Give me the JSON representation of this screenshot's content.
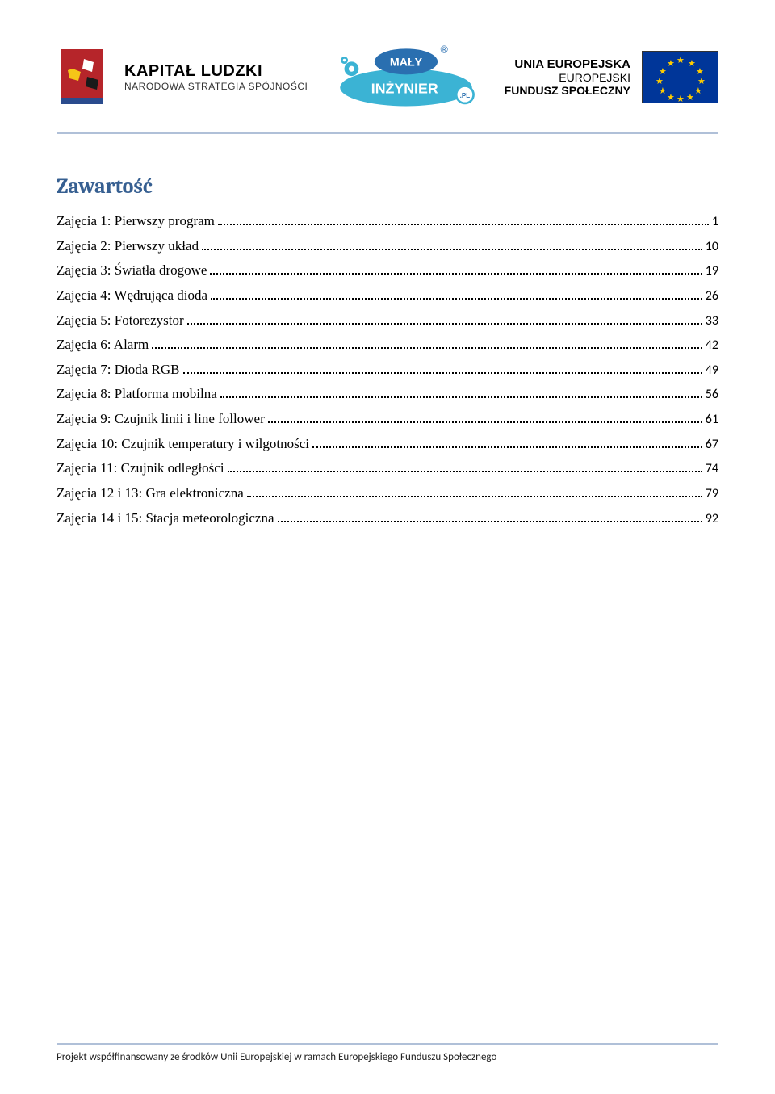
{
  "header": {
    "kapital_title": "KAPITAŁ LUDZKI",
    "kapital_sub": "NARODOWA STRATEGIA SPÓJNOŚCI",
    "mi_top": "MAŁY",
    "mi_bottom": "INŻYNIER",
    "mi_badge": ".PL",
    "ue_line1": "UNIA EUROPEJSKA",
    "ue_line2": "EUROPEJSKI",
    "ue_line3": "FUNDUSZ SPOŁECZNY",
    "colors": {
      "header_rule": "#b0c0d8",
      "title_color": "#365f91",
      "eu_flag_bg": "#003699",
      "eu_star": "#ffcc00",
      "mi_fill": "#3bb3d4"
    }
  },
  "title": "Zawartość",
  "toc": [
    {
      "label": "Zajęcia 1: Pierwszy program",
      "page": "1"
    },
    {
      "label": "Zajęcia 2: Pierwszy układ",
      "page": "10"
    },
    {
      "label": "Zajęcia 3: Światła drogowe",
      "page": "19"
    },
    {
      "label": "Zajęcia 4: Wędrująca dioda",
      "page": "26"
    },
    {
      "label": "Zajęcia 5: Fotorezystor",
      "page": "33"
    },
    {
      "label": "Zajęcia 6: Alarm",
      "page": "42"
    },
    {
      "label": "Zajęcia 7: Dioda RGB",
      "page": "49"
    },
    {
      "label": "Zajęcia 8: Platforma mobilna",
      "page": "56"
    },
    {
      "label": "Zajęcia 9: Czujnik linii i line follower",
      "page": "61"
    },
    {
      "label": "Zajęcia 10: Czujnik temperatury i wilgotności",
      "page": "67"
    },
    {
      "label": "Zajęcia 11: Czujnik odległości",
      "page": "74"
    },
    {
      "label": "Zajęcia 12 i 13: Gra elektroniczna",
      "page": "79"
    },
    {
      "label": "Zajęcia 14 i 15: Stacja meteorologiczna",
      "page": "92"
    }
  ],
  "footer": "Projekt współfinansowany ze środków Unii Europejskiej w ramach Europejskiego Funduszu Społecznego"
}
